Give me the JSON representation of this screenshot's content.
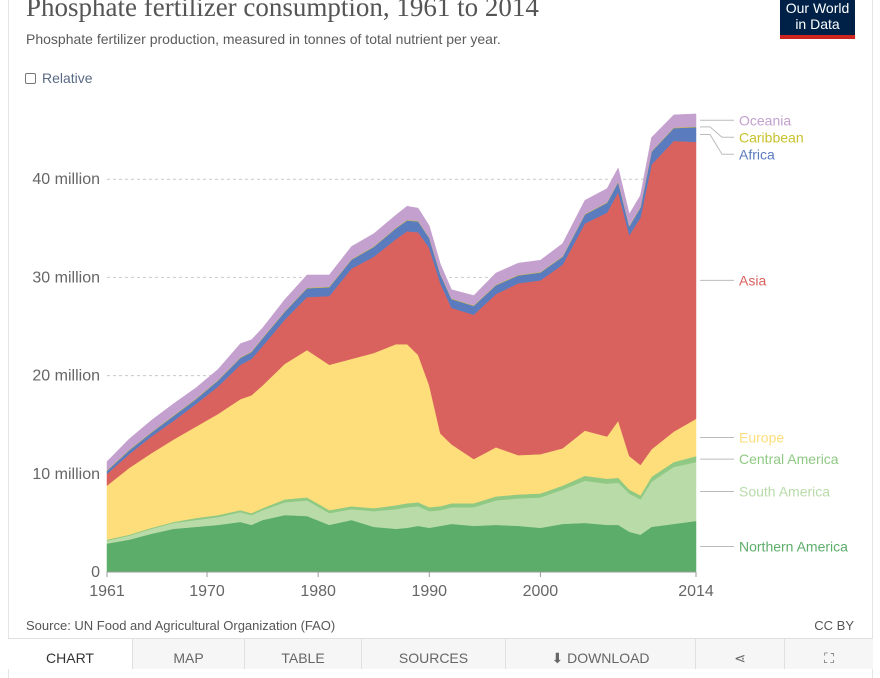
{
  "header": {
    "title": "Phosphate fertilizer consumption, 1961 to 2014",
    "subtitle": "Phosphate fertilizer production, measured in tonnes of total nutrient per year.",
    "logo_line1": "Our World",
    "logo_line2": "in Data"
  },
  "controls": {
    "relative_label": "Relative"
  },
  "footer": {
    "source": "Source: UN Food and Agricultural Organization (FAO)",
    "license": "CC BY"
  },
  "tabs": [
    {
      "label": "CHART",
      "icon": ""
    },
    {
      "label": "MAP",
      "icon": ""
    },
    {
      "label": "TABLE",
      "icon": ""
    },
    {
      "label": "SOURCES",
      "icon": ""
    },
    {
      "label": "DOWNLOAD",
      "icon": "download-icon"
    },
    {
      "label": "",
      "icon": "share-icon"
    },
    {
      "label": "",
      "icon": "fullscreen-icon"
    }
  ],
  "chart_data": {
    "type": "area",
    "stacked": true,
    "title": "Phosphate fertilizer consumption, 1961 to 2014",
    "xlabel": "",
    "ylabel": "",
    "xlim": [
      1961,
      2014
    ],
    "ylim": [
      0,
      46
    ],
    "x_ticks": [
      1961,
      1970,
      1980,
      1990,
      2000,
      2014
    ],
    "y_ticks": [
      {
        "value": 0,
        "label": "0"
      },
      {
        "value": 10,
        "label": "10 million"
      },
      {
        "value": 20,
        "label": "20 million"
      },
      {
        "value": 30,
        "label": "30 million"
      },
      {
        "value": 40,
        "label": "40 million"
      }
    ],
    "grid": "horizontal-dashed",
    "legend": "right-labels",
    "unit_note": "values in million tonnes",
    "x": [
      1961,
      1963,
      1965,
      1967,
      1969,
      1971,
      1973,
      1974,
      1975,
      1977,
      1979,
      1981,
      1983,
      1985,
      1987,
      1988,
      1989,
      1990,
      1991,
      1992,
      1994,
      1996,
      1998,
      2000,
      2002,
      2004,
      2006,
      2007,
      2008,
      2009,
      2010,
      2012,
      2014
    ],
    "series": [
      {
        "name": "Northern America",
        "color": "#5cad6a",
        "values": [
          2.9,
          3.3,
          3.9,
          4.4,
          4.6,
          4.8,
          5.1,
          4.8,
          5.3,
          5.8,
          5.7,
          4.8,
          5.3,
          4.6,
          4.4,
          4.5,
          4.7,
          4.5,
          4.7,
          4.9,
          4.7,
          4.8,
          4.7,
          4.5,
          4.9,
          5.0,
          4.8,
          4.8,
          4.1,
          3.8,
          4.6,
          4.9,
          5.2
        ]
      },
      {
        "name": "South America",
        "color": "#b8dba8",
        "values": [
          0.3,
          0.4,
          0.5,
          0.6,
          0.7,
          0.8,
          1.0,
          1.0,
          1.0,
          1.3,
          1.6,
          1.2,
          1.1,
          1.6,
          2.0,
          2.1,
          2.0,
          1.7,
          1.6,
          1.7,
          1.9,
          2.5,
          2.8,
          3.1,
          3.5,
          4.3,
          4.2,
          4.3,
          3.9,
          3.6,
          4.6,
          5.8,
          6.0
        ]
      },
      {
        "name": "Central America",
        "color": "#8fc983",
        "values": [
          0.1,
          0.1,
          0.1,
          0.1,
          0.2,
          0.2,
          0.2,
          0.2,
          0.2,
          0.3,
          0.3,
          0.3,
          0.3,
          0.3,
          0.4,
          0.4,
          0.4,
          0.4,
          0.4,
          0.4,
          0.4,
          0.4,
          0.4,
          0.4,
          0.4,
          0.5,
          0.5,
          0.5,
          0.4,
          0.4,
          0.5,
          0.5,
          0.6
        ]
      },
      {
        "name": "Europe",
        "color": "#fede7a",
        "values": [
          5.5,
          6.8,
          7.6,
          8.4,
          9.3,
          10.3,
          11.3,
          12.0,
          12.5,
          13.8,
          15.0,
          14.8,
          15.0,
          15.8,
          16.4,
          16.2,
          15.0,
          12.4,
          7.4,
          6.0,
          4.5,
          5.0,
          4.0,
          4.0,
          3.8,
          4.6,
          4.3,
          5.8,
          3.4,
          3.1,
          2.8,
          3.1,
          3.8
        ]
      },
      {
        "name": "Asia",
        "color": "#d9625f",
        "values": [
          1.2,
          1.4,
          1.7,
          1.9,
          2.3,
          2.8,
          3.5,
          3.7,
          4.0,
          4.5,
          5.4,
          7.0,
          9.2,
          9.8,
          10.7,
          11.5,
          12.5,
          14.0,
          15.3,
          13.9,
          14.7,
          15.6,
          17.5,
          17.7,
          18.7,
          21.1,
          22.8,
          23.3,
          22.5,
          25.2,
          29.0,
          29.6,
          28.2
        ]
      },
      {
        "name": "Africa",
        "color": "#5a7cbf",
        "values": [
          0.3,
          0.4,
          0.4,
          0.5,
          0.5,
          0.6,
          0.7,
          0.7,
          0.8,
          0.8,
          0.9,
          0.9,
          0.9,
          1.0,
          1.1,
          1.1,
          1.1,
          1.0,
          0.9,
          0.9,
          0.9,
          0.9,
          0.8,
          0.8,
          0.8,
          0.9,
          1.0,
          1.0,
          0.9,
          1.0,
          1.3,
          1.3,
          1.5
        ]
      },
      {
        "name": "Caribbean",
        "color": "#c7c12a",
        "values": [
          0.05,
          0.05,
          0.05,
          0.05,
          0.05,
          0.05,
          0.05,
          0.05,
          0.05,
          0.05,
          0.05,
          0.05,
          0.05,
          0.05,
          0.05,
          0.05,
          0.05,
          0.05,
          0.05,
          0.05,
          0.05,
          0.05,
          0.05,
          0.05,
          0.05,
          0.05,
          0.05,
          0.05,
          0.05,
          0.05,
          0.05,
          0.05,
          0.05
        ]
      },
      {
        "name": "Oceania",
        "color": "#c4a0ce",
        "values": [
          0.9,
          1.1,
          1.2,
          1.2,
          1.1,
          1.1,
          1.4,
          1.2,
          1.0,
          1.2,
          1.3,
          1.2,
          1.3,
          1.3,
          1.3,
          1.4,
          1.3,
          1.2,
          1.0,
          0.9,
          1.0,
          1.2,
          1.2,
          1.2,
          1.3,
          1.4,
          1.4,
          1.4,
          1.2,
          1.2,
          1.4,
          1.3,
          1.3
        ]
      }
    ]
  }
}
